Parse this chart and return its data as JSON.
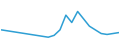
{
  "x": [
    0,
    1,
    2,
    3,
    4,
    5,
    6,
    7,
    8,
    9,
    10,
    11,
    12,
    13,
    14,
    15,
    16,
    17,
    18,
    19,
    20
  ],
  "y": [
    22,
    21.5,
    21,
    20.5,
    20,
    19.5,
    19,
    18.5,
    18,
    19,
    22,
    30,
    26,
    32,
    28,
    24,
    22,
    20,
    19.5,
    20,
    20.5
  ],
  "line_color": "#2e9fd4",
  "background_color": "#ffffff",
  "ylim": [
    14,
    38
  ],
  "xlim": [
    0,
    20
  ]
}
